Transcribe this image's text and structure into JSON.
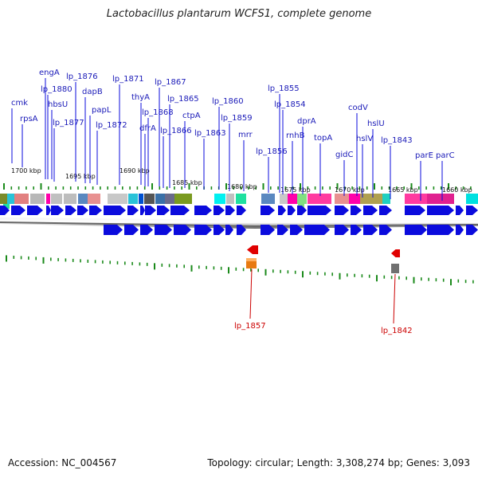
{
  "title": "Lactobacillus plantarum WCFS1, complete genome",
  "footer": {
    "accession": "Accession: NC_004567",
    "summary": "Topology: circular; Length: 3,308,274 bp; Genes: 3,093"
  },
  "scale_labels": [
    "1700 kbp",
    "1695 kbp",
    "1690 kbp",
    "1685 kbp",
    "1680 kbp",
    "1675 kbp",
    "1670 kbp",
    "1665 kbp",
    "1660 kbp"
  ],
  "forward_gene_labels": [
    "cmk",
    "rpsA",
    "engA",
    "lp_1880",
    "hbsU",
    "lp_1877",
    "lp_1876",
    "dapB",
    "papL",
    "lp_1872",
    "lp_1871",
    "thyA",
    "dfrA",
    "lp_1868",
    "lp_1867",
    "lp_1865",
    "lp_1866",
    "ctpA",
    "lp_1863",
    "lp_1860",
    "lp_1859",
    "mrr",
    "lp_1856",
    "lp_1855",
    "lp_1854",
    "rnhB",
    "dprA",
    "topA",
    "gidC",
    "codV",
    "hslV",
    "hslU",
    "lp_1843",
    "parE",
    "parC"
  ],
  "reverse_gene_labels": [
    "lp_1857",
    "lp_1842"
  ],
  "colors": {
    "gene_arrow": "#0b0bdd",
    "forward_label": "#1a1ab8",
    "reverse_label": "#cc0000",
    "tick": "#1a8a1a"
  }
}
